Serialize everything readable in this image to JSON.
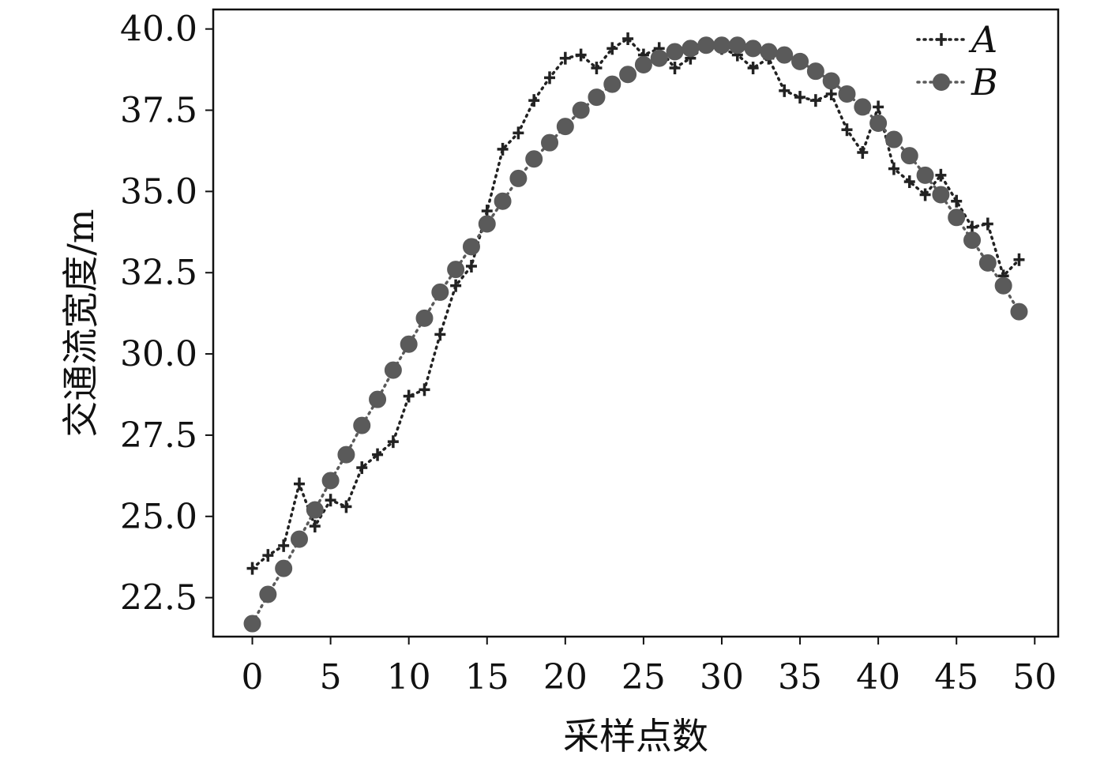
{
  "chart_data": {
    "type": "line",
    "xlabel": "采样点数",
    "ylabel": "交通流宽度/m",
    "xlim": [
      -2.5,
      51.5
    ],
    "ylim": [
      21.3,
      40.6
    ],
    "xticks": [
      0,
      5,
      10,
      15,
      20,
      25,
      30,
      35,
      40,
      45,
      50
    ],
    "yticks": [
      22.5,
      25.0,
      27.5,
      30.0,
      32.5,
      35.0,
      37.5,
      40.0
    ],
    "xtick_labels": [
      "0",
      "5",
      "10",
      "15",
      "20",
      "25",
      "30",
      "35",
      "40",
      "45",
      "50"
    ],
    "ytick_labels": [
      "22.5",
      "25.0",
      "27.5",
      "30.0",
      "32.5",
      "35.0",
      "37.5",
      "40.0"
    ],
    "legend_position": "top-right",
    "grid": false,
    "series": [
      {
        "name": "A",
        "marker": "plus",
        "line_style": "dotted",
        "color": "#222222",
        "x": [
          0,
          1,
          2,
          3,
          4,
          5,
          6,
          7,
          8,
          9,
          10,
          11,
          12,
          13,
          14,
          15,
          16,
          17,
          18,
          19,
          20,
          21,
          22,
          23,
          24,
          25,
          26,
          27,
          28,
          29,
          30,
          31,
          32,
          33,
          34,
          35,
          36,
          37,
          38,
          39,
          40,
          41,
          42,
          43,
          44,
          45,
          46,
          47,
          48,
          49
        ],
        "values": [
          23.4,
          23.8,
          24.1,
          26.0,
          24.7,
          25.5,
          25.3,
          26.5,
          26.9,
          27.3,
          28.7,
          28.9,
          30.6,
          32.1,
          32.7,
          34.4,
          36.3,
          36.8,
          37.8,
          38.5,
          39.1,
          39.2,
          38.8,
          39.4,
          39.7,
          39.2,
          39.4,
          38.8,
          39.1,
          39.5,
          39.4,
          39.2,
          38.8,
          39.1,
          38.1,
          37.9,
          37.8,
          38.0,
          36.9,
          36.2,
          37.6,
          35.7,
          35.3,
          34.9,
          35.5,
          34.7,
          33.9,
          34.0,
          32.4,
          32.9
        ]
      },
      {
        "name": "B",
        "marker": "circle",
        "line_style": "dotted",
        "color": "#5a5a5a",
        "x": [
          0,
          1,
          2,
          3,
          4,
          5,
          6,
          7,
          8,
          9,
          10,
          11,
          12,
          13,
          14,
          15,
          16,
          17,
          18,
          19,
          20,
          21,
          22,
          23,
          24,
          25,
          26,
          27,
          28,
          29,
          30,
          31,
          32,
          33,
          34,
          35,
          36,
          37,
          38,
          39,
          40,
          41,
          42,
          43,
          44,
          45,
          46,
          47,
          48,
          49
        ],
        "values": [
          21.7,
          22.6,
          23.4,
          24.3,
          25.2,
          26.1,
          26.9,
          27.8,
          28.6,
          29.5,
          30.3,
          31.1,
          31.9,
          32.6,
          33.3,
          34.0,
          34.7,
          35.4,
          36.0,
          36.5,
          37.0,
          37.5,
          37.9,
          38.3,
          38.6,
          38.9,
          39.1,
          39.3,
          39.4,
          39.5,
          39.5,
          39.5,
          39.4,
          39.3,
          39.2,
          39.0,
          38.7,
          38.4,
          38.0,
          37.6,
          37.1,
          36.6,
          36.1,
          35.5,
          34.9,
          34.2,
          33.5,
          32.8,
          32.1,
          31.3
        ]
      }
    ]
  }
}
